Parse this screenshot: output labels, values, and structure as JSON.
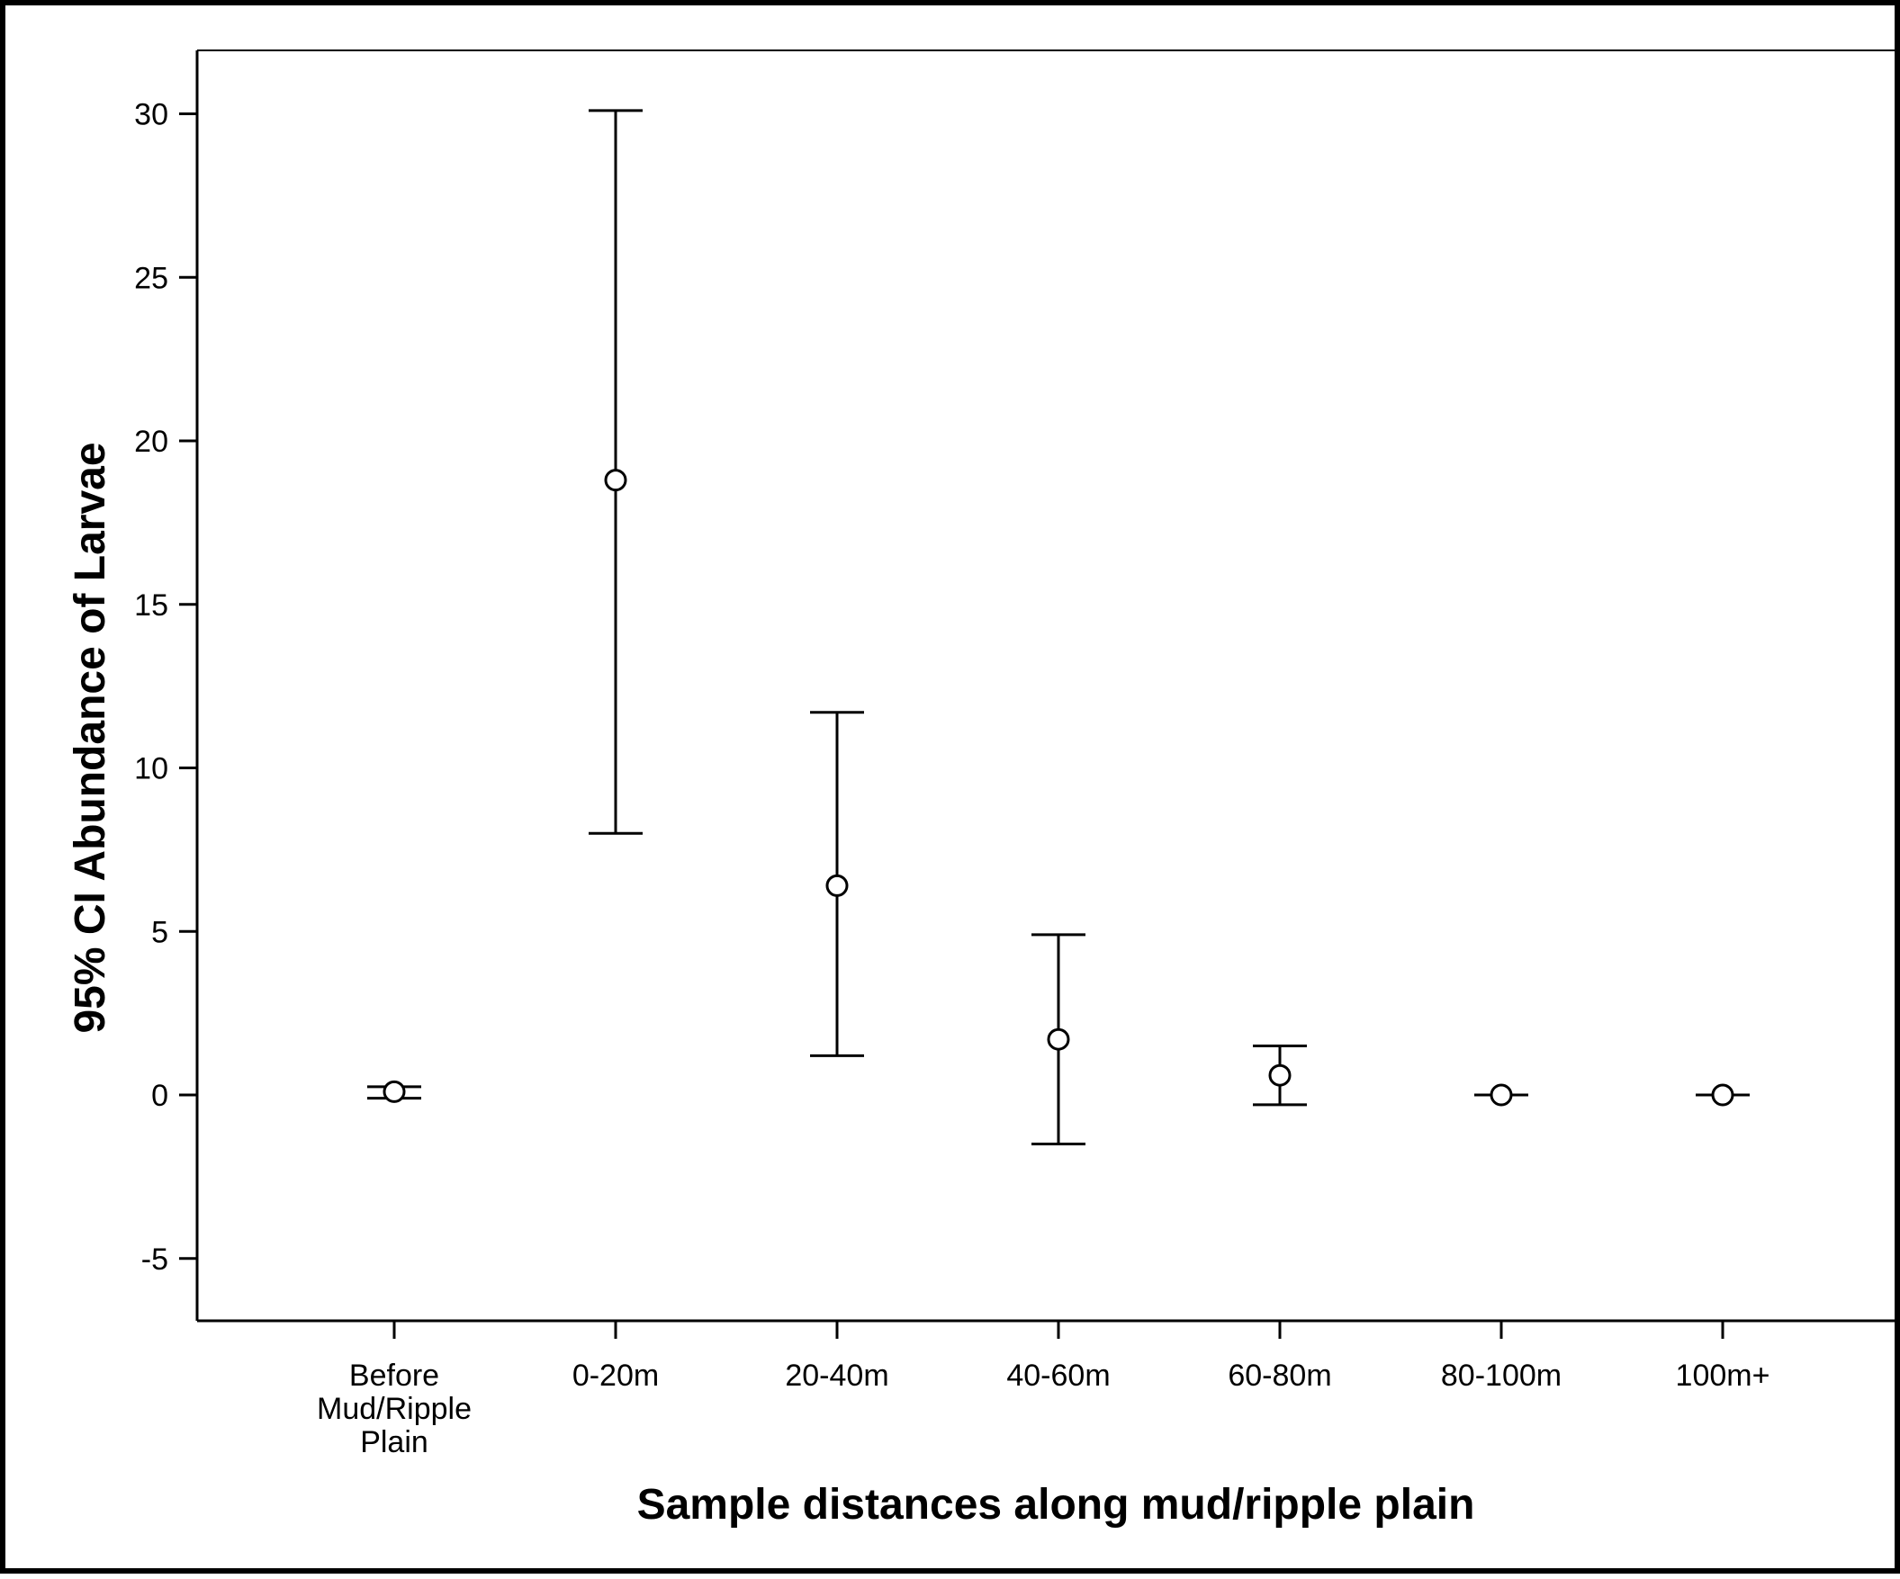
{
  "chart_data": {
    "type": "errorbar",
    "title": "",
    "xlabel": "Sample distances along mud/ripple plain",
    "ylabel": "95% CI Abundance of Larvae",
    "ylim": [
      -7,
      32
    ],
    "yticks": [
      -5,
      0,
      5,
      10,
      15,
      20,
      25,
      30
    ],
    "grid": false,
    "categories": [
      [
        "Before",
        "Mud/Ripple",
        "Plain"
      ],
      [
        "0-20m"
      ],
      [
        "20-40m"
      ],
      [
        "40-60m"
      ],
      [
        "60-80m"
      ],
      [
        "80-100m"
      ],
      [
        "100m+"
      ]
    ],
    "points": [
      {
        "mean": 0.1,
        "lower": -0.1,
        "upper": 0.25
      },
      {
        "mean": 18.8,
        "lower": 8.0,
        "upper": 30.1
      },
      {
        "mean": 6.4,
        "lower": 1.2,
        "upper": 11.7
      },
      {
        "mean": 1.7,
        "lower": -1.5,
        "upper": 4.9
      },
      {
        "mean": 0.6,
        "lower": -0.3,
        "upper": 1.5
      },
      {
        "mean": 0.0,
        "lower": 0.0,
        "upper": 0.0
      },
      {
        "mean": 0.0,
        "lower": 0.0,
        "upper": 0.0
      }
    ],
    "colors": {
      "line": "#000000",
      "marker_fill": "#ffffff"
    }
  }
}
